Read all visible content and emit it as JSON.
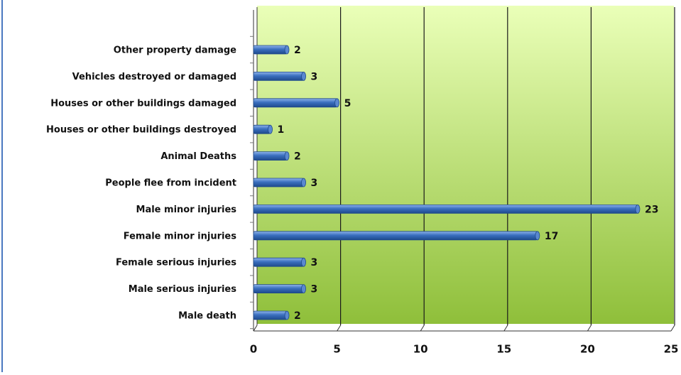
{
  "chart_data": {
    "type": "bar",
    "orientation": "horizontal",
    "categories": [
      "Other property damage",
      "Vehicles destroyed or damaged",
      "Houses or other buildings damaged",
      "Houses or other buildings destroyed",
      "Animal Deaths",
      "People flee from incident",
      "Male minor injuries",
      "Female minor injuries",
      "Female serious injuries",
      "Male serious injuries",
      "Male death"
    ],
    "values": [
      2,
      3,
      5,
      1,
      2,
      3,
      23,
      17,
      3,
      3,
      2
    ],
    "color": "#3a6fbf",
    "xlim": [
      0,
      25
    ],
    "xticks": [
      0,
      5,
      10,
      15,
      20,
      25
    ],
    "grid": true
  }
}
